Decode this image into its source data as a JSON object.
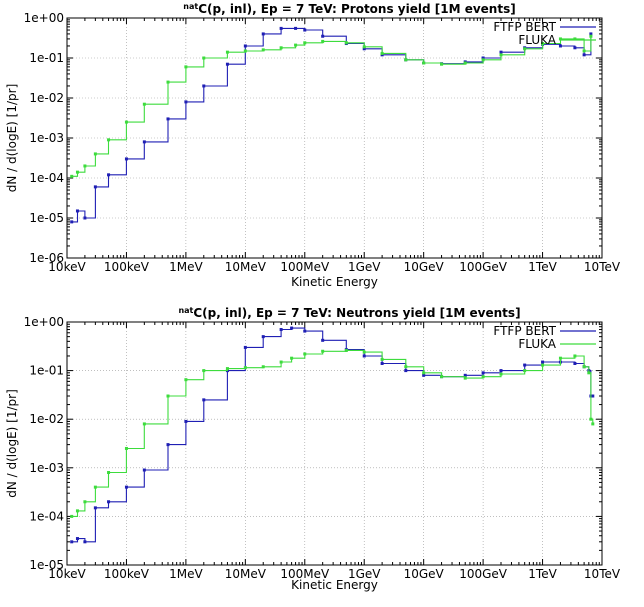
{
  "chart_data": [
    {
      "type": "line",
      "title_sup": "nat",
      "title": "C(p, inl), Ep = 7 TeV: Protons yield [1M events]",
      "xlabel": "Kinetic Energy",
      "ylabel": "dN / d(logE) [1/pr]",
      "x_scale": "log",
      "y_scale": "log",
      "xlim": [
        1e-05,
        10000
      ],
      "ylim": [
        1e-06,
        1
      ],
      "x_ticks": [
        "10keV",
        "100keV",
        "1MeV",
        "10MeV",
        "100MeV",
        "1GeV",
        "10GeV",
        "100GeV",
        "1TeV",
        "10TeV"
      ],
      "y_ticks": [
        "1e-06",
        "1e-05",
        "1e-04",
        "1e-03",
        "1e-02",
        "1e-01",
        "1e+00"
      ],
      "grid": true,
      "legend_position": "top-right",
      "series": [
        {
          "name": "FTFP BERT",
          "color": "#1f1fb4",
          "x": [
            1.2e-05,
            1.5e-05,
            2e-05,
            3e-05,
            5e-05,
            0.0001,
            0.0002,
            0.0005,
            0.001,
            0.002,
            0.005,
            0.01,
            0.02,
            0.04,
            0.07,
            0.1,
            0.2,
            0.5,
            1,
            2,
            5,
            10,
            20,
            50,
            100,
            200,
            500,
            1000,
            2000,
            3500,
            5000,
            6500
          ],
          "y": [
            8e-06,
            1.5e-05,
            1e-05,
            6e-05,
            0.00012,
            0.0003,
            0.0008,
            0.003,
            0.008,
            0.02,
            0.07,
            0.2,
            0.4,
            0.55,
            0.55,
            0.5,
            0.35,
            0.23,
            0.17,
            0.12,
            0.09,
            0.075,
            0.072,
            0.08,
            0.1,
            0.14,
            0.18,
            0.22,
            0.2,
            0.18,
            0.12,
            0.4
          ]
        },
        {
          "name": "FLUKA",
          "color": "#3ddc3d",
          "x": [
            1.2e-05,
            1.5e-05,
            2e-05,
            3e-05,
            5e-05,
            0.0001,
            0.0002,
            0.0005,
            0.001,
            0.002,
            0.005,
            0.01,
            0.02,
            0.04,
            0.07,
            0.1,
            0.2,
            0.5,
            1,
            2,
            5,
            10,
            20,
            50,
            100,
            200,
            500,
            1000,
            2000,
            3500,
            5000,
            6500
          ],
          "y": [
            0.00011,
            0.00014,
            0.0002,
            0.0004,
            0.0009,
            0.0025,
            0.007,
            0.025,
            0.06,
            0.1,
            0.14,
            0.15,
            0.16,
            0.18,
            0.21,
            0.24,
            0.26,
            0.24,
            0.19,
            0.13,
            0.09,
            0.075,
            0.07,
            0.075,
            0.09,
            0.12,
            0.17,
            0.23,
            0.3,
            0.3,
            0.15,
            0.35
          ]
        }
      ]
    },
    {
      "type": "line",
      "title_sup": "nat",
      "title": "C(p, inl), Ep = 7 TeV: Neutrons yield [1M events]",
      "xlabel": "Kinetic Energy",
      "ylabel": "dN / d(logE) [1/pr]",
      "x_scale": "log",
      "y_scale": "log",
      "xlim": [
        1e-05,
        10000
      ],
      "ylim": [
        1e-05,
        1
      ],
      "x_ticks": [
        "10keV",
        "100keV",
        "1MeV",
        "10MeV",
        "100MeV",
        "1GeV",
        "10GeV",
        "100GeV",
        "1TeV",
        "10TeV"
      ],
      "y_ticks": [
        "1e-05",
        "1e-04",
        "1e-03",
        "1e-02",
        "1e-01",
        "1e+00"
      ],
      "grid": true,
      "legend_position": "top-right",
      "series": [
        {
          "name": "FTFP BERT",
          "color": "#1f1fb4",
          "x": [
            1.2e-05,
            1.5e-05,
            2e-05,
            3e-05,
            5e-05,
            0.0001,
            0.0002,
            0.0005,
            0.001,
            0.002,
            0.005,
            0.01,
            0.02,
            0.04,
            0.06,
            0.1,
            0.2,
            0.5,
            1,
            2,
            5,
            10,
            20,
            50,
            100,
            200,
            500,
            1000,
            2000,
            3500,
            5000,
            6000,
            6500,
            7000
          ],
          "y": [
            3e-05,
            3.5e-05,
            3e-05,
            0.00015,
            0.0002,
            0.0004,
            0.0009,
            0.003,
            0.009,
            0.025,
            0.1,
            0.3,
            0.5,
            0.7,
            0.75,
            0.65,
            0.42,
            0.27,
            0.2,
            0.14,
            0.1,
            0.08,
            0.075,
            0.08,
            0.09,
            0.1,
            0.13,
            0.15,
            0.15,
            0.14,
            0.12,
            0.1,
            0.03,
            0.03
          ]
        },
        {
          "name": "FLUKA",
          "color": "#3ddc3d",
          "x": [
            1.2e-05,
            1.5e-05,
            2e-05,
            3e-05,
            5e-05,
            0.0001,
            0.0002,
            0.0005,
            0.001,
            0.002,
            0.005,
            0.01,
            0.02,
            0.04,
            0.06,
            0.1,
            0.2,
            0.5,
            1,
            2,
            5,
            10,
            20,
            50,
            100,
            200,
            500,
            1000,
            2000,
            3500,
            5000,
            6000,
            6500,
            7000
          ],
          "y": [
            0.0001,
            0.00013,
            0.0002,
            0.0004,
            0.0008,
            0.0025,
            0.008,
            0.03,
            0.065,
            0.1,
            0.11,
            0.115,
            0.12,
            0.15,
            0.18,
            0.22,
            0.25,
            0.26,
            0.24,
            0.17,
            0.12,
            0.09,
            0.075,
            0.07,
            0.075,
            0.085,
            0.1,
            0.13,
            0.18,
            0.2,
            0.12,
            0.09,
            0.01,
            0.008
          ]
        }
      ]
    }
  ]
}
